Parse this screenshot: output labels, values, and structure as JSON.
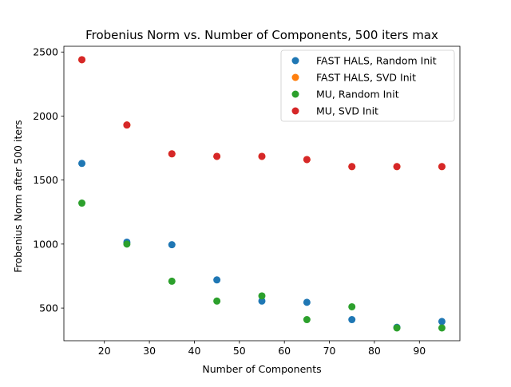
{
  "chart_data": {
    "type": "scatter",
    "title": "Frobenius Norm vs. Number of Components, 500 iters max",
    "xlabel": "Number of Components",
    "ylabel": "Frobenius Norm after 500 iters",
    "xlim": [
      11,
      99
    ],
    "ylim": [
      245,
      2545
    ],
    "xticks": [
      20,
      30,
      40,
      50,
      60,
      70,
      80,
      90
    ],
    "yticks": [
      500,
      1000,
      1500,
      2000,
      2500
    ],
    "grid": false,
    "legend_position": "top-right",
    "x": [
      15,
      25,
      35,
      45,
      55,
      65,
      75,
      85,
      95
    ],
    "series": [
      {
        "name": "FAST HALS, Random Init",
        "color": "#1f77b4",
        "values": [
          1630,
          1015,
          995,
          720,
          555,
          545,
          410,
          350,
          395
        ]
      },
      {
        "name": "FAST HALS, SVD Init",
        "color": "#ff7f0e",
        "values": [
          2440,
          1930,
          1705,
          1685,
          1685,
          1660,
          1605,
          1605,
          1605
        ]
      },
      {
        "name": "MU, Random Init",
        "color": "#2ca02c",
        "values": [
          1320,
          1000,
          710,
          555,
          595,
          410,
          510,
          345,
          345
        ]
      },
      {
        "name": "MU, SVD Init",
        "color": "#d62728",
        "values": [
          2440,
          1930,
          1705,
          1685,
          1685,
          1660,
          1605,
          1605,
          1605
        ]
      }
    ]
  }
}
